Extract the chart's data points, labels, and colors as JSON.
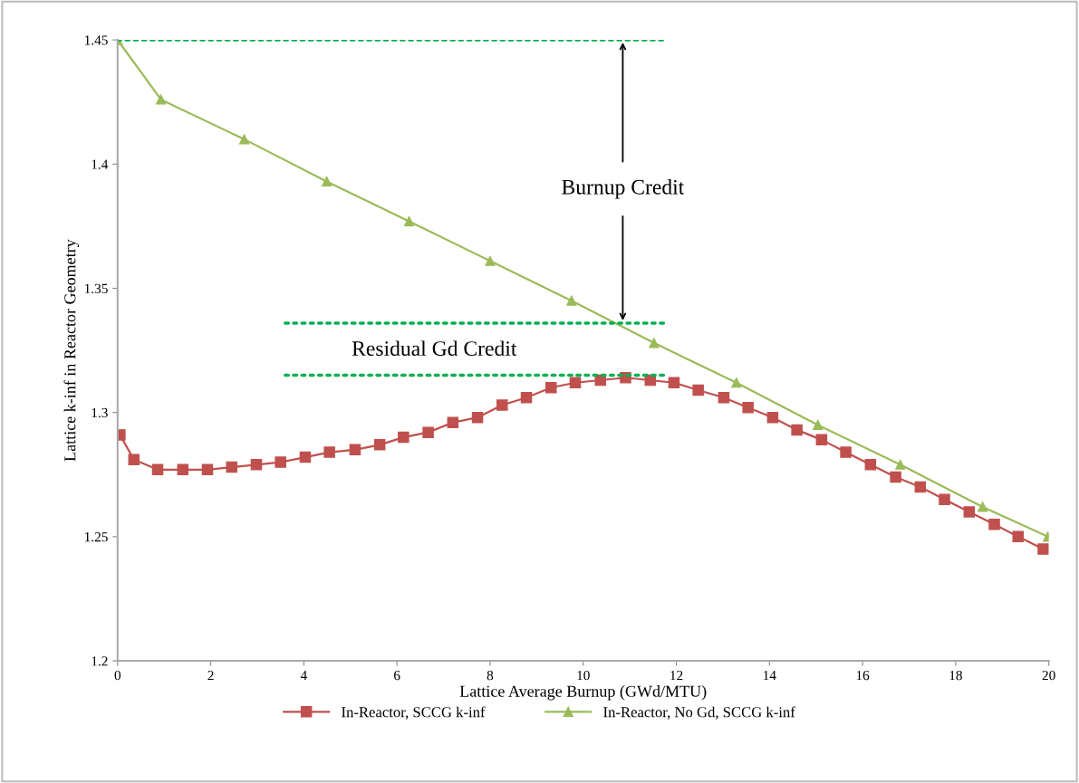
{
  "chart_data": {
    "type": "line",
    "xlabel": "Lattice Average Burnup (GWd/MTU)",
    "ylabel": "Lattice k-inf in Reactor Geometry",
    "xlim": [
      0,
      20
    ],
    "xticks": [
      0,
      2,
      4,
      6,
      8,
      10,
      12,
      14,
      16,
      18,
      20
    ],
    "ylim": [
      1.2,
      1.45
    ],
    "yticks": [
      1.2,
      1.25,
      1.3,
      1.35,
      1.4,
      1.45
    ],
    "grid": false,
    "legend": "bottom",
    "line_style": "solid",
    "series": [
      {
        "name": "In-Reactor, SCCG k-inf",
        "color": "#c0504d",
        "marker": "square",
        "x": [
          0.05,
          0.35,
          0.86,
          1.4,
          1.93,
          2.45,
          2.98,
          3.5,
          4.03,
          4.55,
          5.1,
          5.63,
          6.14,
          6.67,
          7.2,
          7.73,
          8.26,
          8.78,
          9.31,
          9.83,
          10.37,
          10.91,
          11.44,
          11.95,
          12.47,
          13.02,
          13.54,
          14.07,
          14.59,
          15.12,
          15.64,
          16.17,
          16.71,
          17.24,
          17.76,
          18.29,
          18.83,
          19.34,
          19.88
        ],
        "values": [
          1.291,
          1.281,
          1.277,
          1.277,
          1.277,
          1.278,
          1.279,
          1.28,
          1.282,
          1.284,
          1.285,
          1.287,
          1.29,
          1.292,
          1.296,
          1.298,
          1.303,
          1.306,
          1.31,
          1.312,
          1.313,
          1.314,
          1.313,
          1.312,
          1.309,
          1.306,
          1.302,
          1.298,
          1.293,
          1.289,
          1.284,
          1.279,
          1.274,
          1.27,
          1.265,
          1.26,
          1.255,
          1.25,
          1.245
        ]
      },
      {
        "name": "In-Reactor, No Gd, SCCG k-inf",
        "color": "#9bbb59",
        "marker": "triangle",
        "x": [
          0,
          0.93,
          2.72,
          4.49,
          6.26,
          8.0,
          9.75,
          11.52,
          13.29,
          15.04,
          16.81,
          18.58,
          19.98
        ],
        "values": [
          1.45,
          1.426,
          1.41,
          1.393,
          1.377,
          1.361,
          1.345,
          1.328,
          1.312,
          1.295,
          1.279,
          1.262,
          1.25
        ]
      },
      {
        "color": "#00b050",
        "marker": "none",
        "line_style": "dotted",
        "x": [
          0,
          11.8
        ],
        "values": [
          1.45,
          1.45
        ]
      },
      {
        "color": "#00b050",
        "marker": "none",
        "line_style": "dotted",
        "x": [
          3.6,
          11.8
        ],
        "values": [
          1.336,
          1.336
        ]
      },
      {
        "color": "#00b050",
        "marker": "none",
        "line_style": "dotted",
        "x": [
          3.6,
          11.8
        ],
        "values": [
          1.315,
          1.315
        ]
      }
    ],
    "annotations": [
      "Burnup Credit",
      "Residual Gd Credit"
    ]
  }
}
